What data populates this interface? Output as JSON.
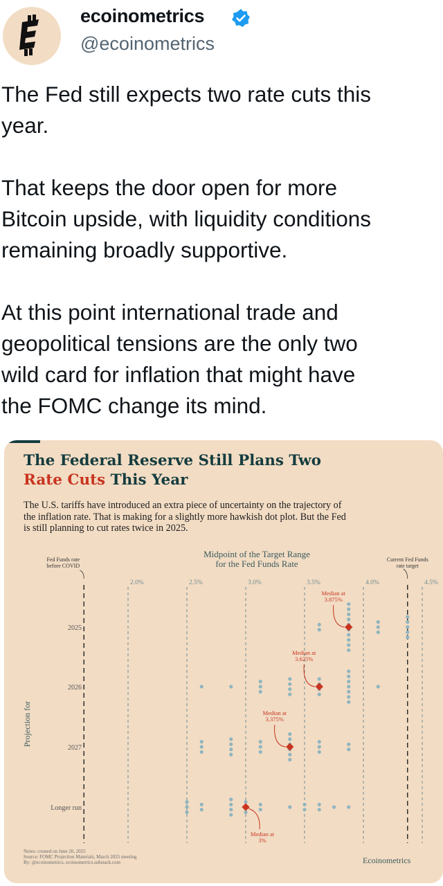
{
  "author": {
    "name": "ecoinometrics",
    "handle": "@ecoinometrics",
    "verified": true,
    "avatar_icon": "ecoinometrics-logo-icon",
    "brand_color": "#143c3e"
  },
  "tweet": {
    "paragraphs": [
      "The Fed still expects two rate cuts this\nyear.",
      "That keeps the door open for more\nBitcoin upside, with liquidity conditions\nremaining broadly supportive.",
      "At this point international trade and\ngeopolitical tensions are the only two\nwild card for inflation that might have\nthe FOMC change its mind."
    ]
  },
  "card": {
    "title_line1": "The Federal Reserve Still Plans Two",
    "title_highlight": "Rate Cuts",
    "title_rest": " This Year",
    "description": "The U.S. tariffs have introduced an extra piece of uncertainty on the trajectory of the inflation rate. That is making for a slightly more hawkish dot plot. But the Fed is still planning to cut rates twice in 2025.",
    "notes": [
      "Notes: created on June 20, 2025",
      "Source: FOMC Projection Materials, March 2025 meeting",
      "By: @ecoinometrics, ecoinometrics.substack.com"
    ],
    "brand": "Ecoinometrics",
    "colors": {
      "background": "#f2dcc4",
      "dot": "#8fb5bf",
      "median": "#c8341f",
      "text": "#143c3e"
    }
  },
  "chart_data": {
    "type": "scatter",
    "title": "Midpoint of the Target Range for the Fed Funds Rate",
    "ylabel": "Projection for",
    "x_ticks": [
      "2.0%",
      "2.5%",
      "3.0%",
      "3.5%",
      "4.0%",
      "4.5%"
    ],
    "xlim": [
      1.3,
      4.65
    ],
    "categories": [
      "2025",
      "2026",
      "2027",
      "Longer run"
    ],
    "reference_lines": [
      {
        "label": "Fed Funds rate before COVID",
        "value": 1.625
      },
      {
        "label": "Current Fed Funds rate target",
        "value": 4.375
      }
    ],
    "series": [
      {
        "category": "2025",
        "values": [
          3.625,
          3.625,
          3.875,
          3.875,
          3.875,
          3.875,
          3.875,
          3.875,
          3.875,
          3.875,
          3.875,
          3.875,
          4.125,
          4.125,
          4.125,
          4.375,
          4.375,
          4.375,
          4.375,
          4.375
        ]
      },
      {
        "category": "2026",
        "values": [
          2.625,
          2.875,
          3.125,
          3.125,
          3.125,
          3.375,
          3.375,
          3.375,
          3.375,
          3.625,
          3.625,
          3.625,
          3.625,
          3.875,
          3.875,
          3.875,
          3.875,
          3.875,
          3.875,
          3.875,
          4.125
        ]
      },
      {
        "category": "2027",
        "values": [
          2.625,
          2.625,
          2.625,
          2.875,
          2.875,
          2.875,
          2.875,
          3.125,
          3.125,
          3.125,
          3.375,
          3.375,
          3.375,
          3.375,
          3.375,
          3.375,
          3.625,
          3.625,
          3.625,
          3.875,
          3.875
        ]
      },
      {
        "category": "Longer run",
        "values": [
          2.5,
          2.5,
          2.5,
          2.625,
          2.625,
          2.875,
          2.875,
          2.875,
          2.875,
          3.0,
          3.0,
          3.0,
          3.125,
          3.125,
          3.375,
          3.5,
          3.5,
          3.625,
          3.625,
          3.75,
          3.875
        ]
      }
    ],
    "medians": [
      {
        "category": "2025",
        "value": 3.875,
        "label_line1": "Median at",
        "label_line2": "3.875%"
      },
      {
        "category": "2026",
        "value": 3.625,
        "label_line1": "Median at",
        "label_line2": "3.625%"
      },
      {
        "category": "2027",
        "value": 3.375,
        "label_line1": "Median at",
        "label_line2": "3.375%"
      },
      {
        "category": "Longer run",
        "value": 3.0,
        "label_line1": "Median at",
        "label_line2": "3%"
      }
    ]
  }
}
